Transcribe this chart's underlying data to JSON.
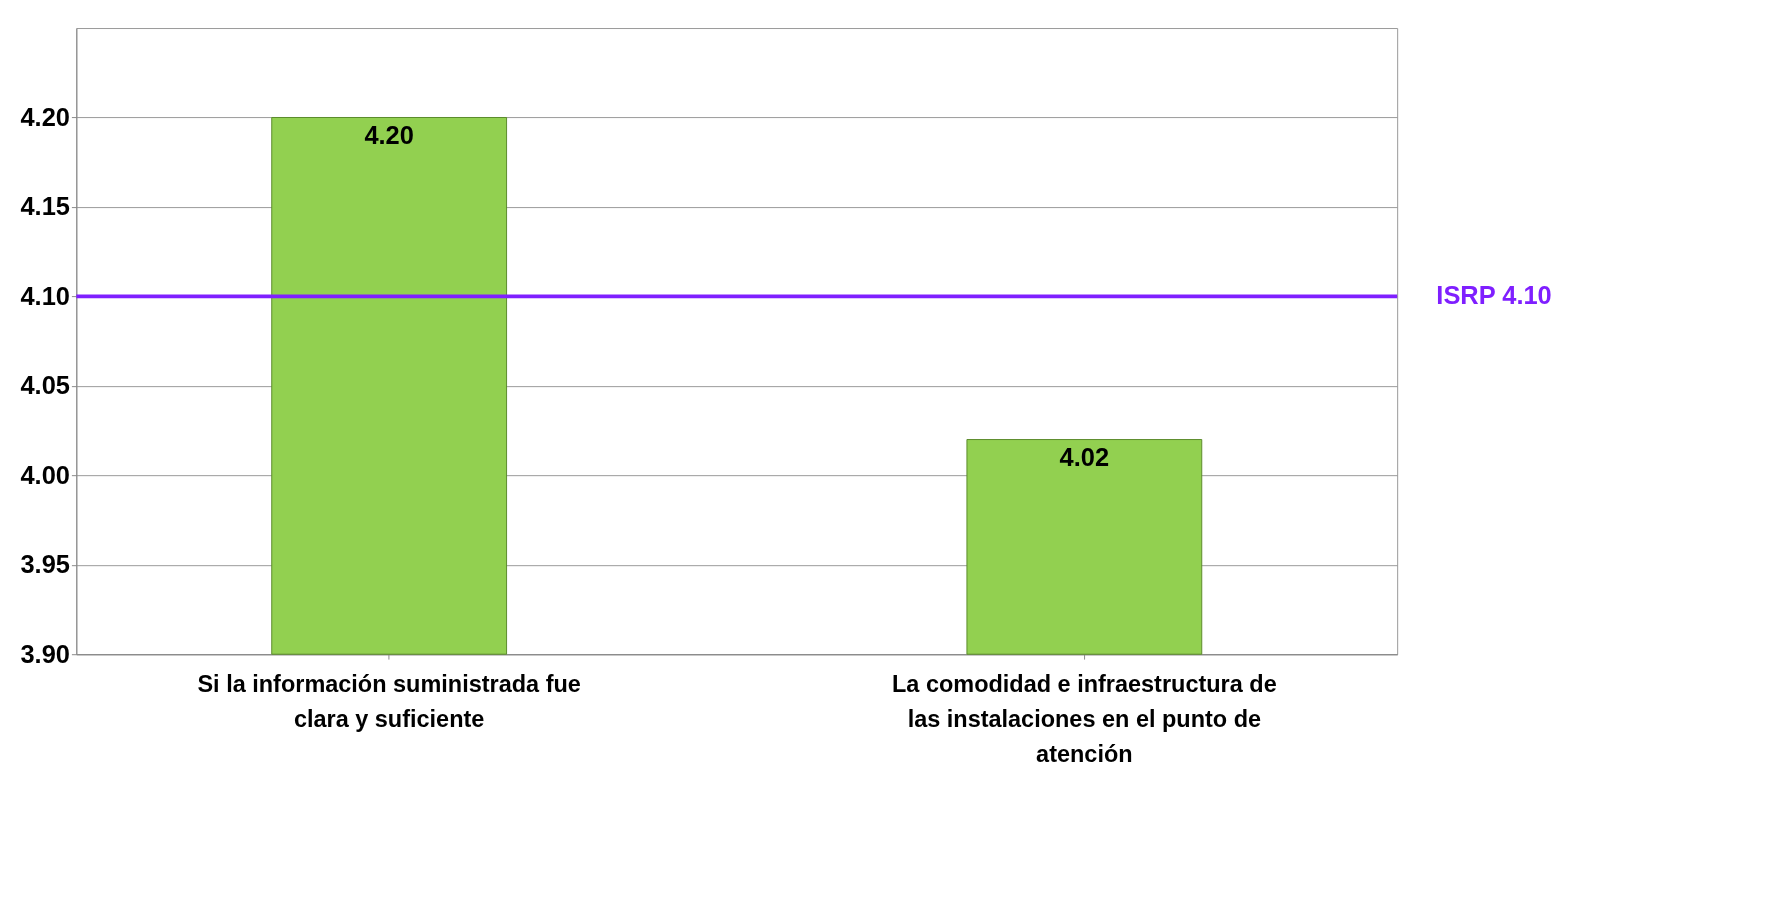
{
  "chart_data": {
    "type": "bar",
    "categories": [
      "Si la información suministrada fue clara y suficiente",
      "La comodidad e infraestructura de las instalaciones en el punto de atención"
    ],
    "values": [
      4.2,
      4.02
    ],
    "value_labels": [
      "4.20",
      "4.02"
    ],
    "color": "#92d050",
    "ylim": [
      3.9,
      4.25
    ],
    "yticks": [
      {
        "value": 3.9,
        "label": "3.90"
      },
      3.95,
      {
        "value": 4.0,
        "label": "4.00"
      },
      4.05,
      {
        "value": 4.1,
        "label": "4.10"
      },
      4.15,
      {
        "value": 4.2,
        "label": "4.20"
      }
    ],
    "grid": "y",
    "ref_lines": [
      {
        "axis": "y",
        "value": 4.1,
        "label": "ISRP 4.10",
        "color": "#7f1fff"
      }
    ]
  }
}
